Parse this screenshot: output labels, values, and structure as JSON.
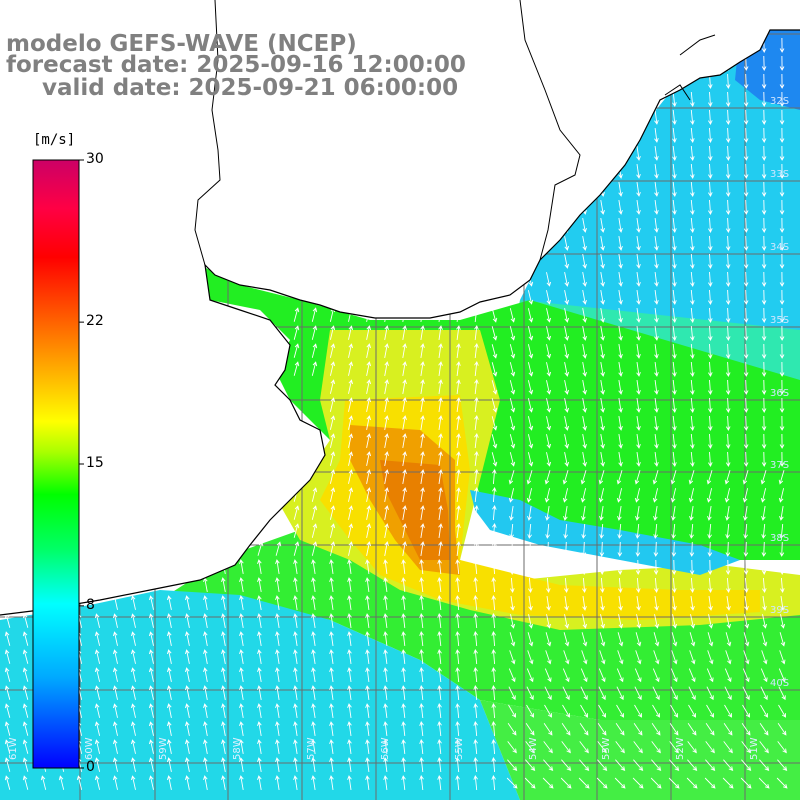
{
  "titles": {
    "model": "modelo GEFS-WAVE (NCEP)",
    "forecast": "forecast date: 2025-09-16 12:00:00",
    "valid": "valid date: 2025-09-21 06:00:00"
  },
  "colorbar": {
    "unit": "[m/s]",
    "min": 0,
    "max": 30,
    "ticks": [
      "30",
      "22",
      "15",
      "8",
      "0"
    ],
    "tick_values": [
      30,
      22,
      15,
      8,
      0
    ],
    "colors": [
      "#0000ff",
      "#00aaff",
      "#00ffff",
      "#00ff55",
      "#00ff00",
      "#aaff00",
      "#ffff00",
      "#ffaa00",
      "#ff6600",
      "#ff0000",
      "#ff0055",
      "#cc0066"
    ]
  },
  "axes": {
    "lat_labels": [
      "32S",
      "33S",
      "34S",
      "35S",
      "36S",
      "37S",
      "38S",
      "39S",
      "40S"
    ],
    "lon_labels": [
      "61W",
      "60W",
      "59W",
      "58W",
      "57W",
      "56W",
      "55W",
      "54W",
      "53W",
      "52W",
      "51W"
    ]
  },
  "map": {
    "variable": "wind speed",
    "units": "m/s",
    "grid_lines": true,
    "arrows": "white wind direction vectors",
    "land_color": "#ffffff",
    "coastline_color": "#000000"
  }
}
